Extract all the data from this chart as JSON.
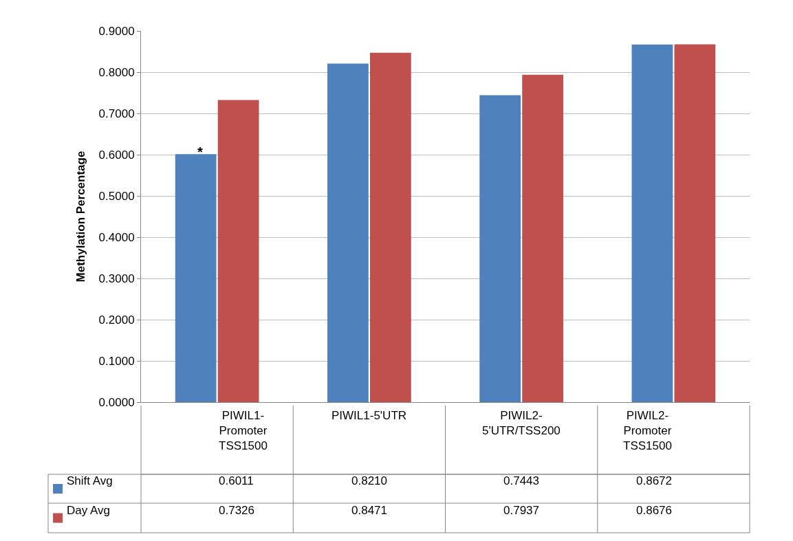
{
  "chart_data": {
    "type": "bar",
    "ylabel": "Methylation Percentage",
    "categories": [
      "PIWIL1-\nPromoter\nTSS1500",
      "PIWIL1-5'UTR",
      "PIWIL2-\n5'UTR/TSS200",
      "PIWIL2-\nPromoter\nTSS1500"
    ],
    "series": [
      {
        "name": "Shift Avg",
        "color": "#4f81bd",
        "values": [
          0.6011,
          0.821,
          0.7443,
          0.8672
        ]
      },
      {
        "name": "Day Avg",
        "color": "#c0504d",
        "values": [
          0.7326,
          0.8471,
          0.7937,
          0.8676
        ]
      }
    ],
    "value_labels": [
      [
        "0.6011",
        "0.8210",
        "0.7443",
        "0.8672"
      ],
      [
        "0.7326",
        "0.8471",
        "0.7937",
        "0.8676"
      ]
    ],
    "ylim": [
      0,
      0.9
    ],
    "yticks": [
      {
        "value": 0,
        "label": "0.0000"
      },
      {
        "value": 0.1,
        "label": "0.1000"
      },
      {
        "value": 0.2,
        "label": "0.2000"
      },
      {
        "value": 0.3,
        "label": "0.3000"
      },
      {
        "value": 0.4,
        "label": "0.4000"
      },
      {
        "value": 0.5,
        "label": "0.5000"
      },
      {
        "value": 0.6,
        "label": "0.6000"
      },
      {
        "value": 0.7,
        "label": "0.7000"
      },
      {
        "value": 0.8,
        "label": "0.8000"
      },
      {
        "value": 0.9,
        "label": "0.9000"
      }
    ],
    "grid": "y",
    "legend": "bottom",
    "annotations": [
      "*"
    ]
  }
}
